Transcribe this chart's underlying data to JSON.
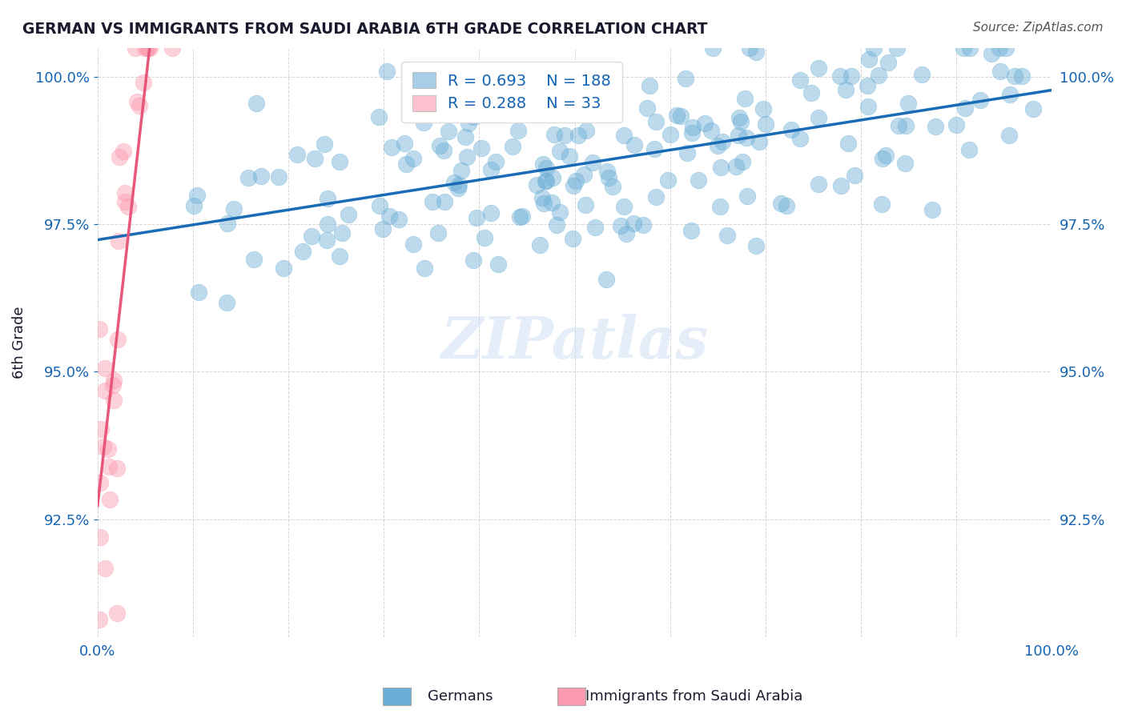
{
  "title": "GERMAN VS IMMIGRANTS FROM SAUDI ARABIA 6TH GRADE CORRELATION CHART",
  "source": "Source: ZipAtlas.com",
  "xlabel": "",
  "ylabel": "6th Grade",
  "xlim": [
    0.0,
    1.0
  ],
  "ylim": [
    0.905,
    1.005
  ],
  "yticks": [
    0.925,
    0.95,
    0.975,
    1.0
  ],
  "ytick_labels": [
    "92.5%",
    "95.0%",
    "97.5%",
    "100.0%"
  ],
  "xticks": [
    0.0,
    0.1,
    0.2,
    0.3,
    0.4,
    0.5,
    0.6,
    0.7,
    0.8,
    0.9,
    1.0
  ],
  "xtick_labels": [
    "0.0%",
    "",
    "",
    "",
    "",
    "",
    "",
    "",
    "",
    "",
    "100.0%"
  ],
  "blue_R": 0.693,
  "blue_N": 188,
  "pink_R": 0.288,
  "pink_N": 33,
  "blue_color": "#6baed6",
  "pink_color": "#fc9aaf",
  "blue_line_color": "#1a6bb5",
  "pink_line_color": "#e8567a",
  "watermark": "ZIPatlas",
  "legend_label_blue": "Germans",
  "legend_label_pink": "Immigrants from Saudi Arabia",
  "background_color": "#ffffff",
  "grid_color": "#cccccc",
  "title_color": "#1a1a2e",
  "axis_label_color": "#1a1a2e",
  "tick_label_color": "#1464b4",
  "right_tick_color": "#1464b4"
}
